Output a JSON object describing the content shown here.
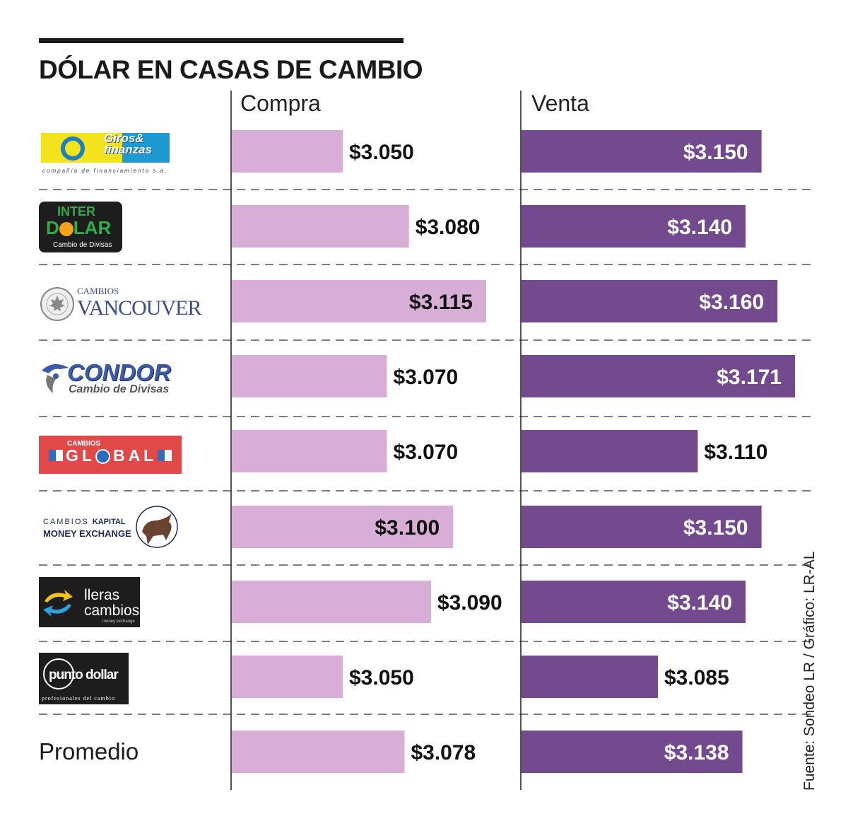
{
  "chart_data": {
    "type": "bar",
    "title": "DÓLAR EN CASAS DE CAMBIO",
    "series": [
      {
        "name": "Compra",
        "color": "#d8aed6",
        "values": [
          3050,
          3080,
          3115,
          3070,
          3070,
          3100,
          3090,
          3050,
          3078
        ],
        "labels": [
          "$3.050",
          "$3.080",
          "$3.115",
          "$3.070",
          "$3.070",
          "$3.100",
          "$3.090",
          "$3.050",
          "$3.078"
        ]
      },
      {
        "name": "Venta",
        "color": "#744a8f",
        "values": [
          3150,
          3140,
          3160,
          3171,
          3110,
          3150,
          3140,
          3085,
          3138
        ],
        "labels": [
          "$3.150",
          "$3.140",
          "$3.160",
          "$3.171",
          "$3.110",
          "$3.150",
          "$3.140",
          "$3.085",
          "$3.138"
        ]
      }
    ],
    "categories": [
      "Giros & Finanzas",
      "Inter Dolar",
      "Cambios Vancouver",
      "Condor",
      "Cambios Global",
      "Cambios Kapital",
      "Lleras Cambios",
      "Punto Dollar",
      "Promedio"
    ],
    "average_label": "Promedio",
    "source": "Fuente: Sondeo LR / Gráfico: LR-AL"
  },
  "logos": {
    "giros": {
      "name": "Giros&",
      "name2": "finanzas",
      "tagline": "compañía de financiamiento s.a."
    },
    "inter": {
      "line1": "INTER",
      "line2a": "D",
      "line2b": "LAR",
      "tagline": "Cambio de Divisas"
    },
    "vancouver": {
      "line1": "CAMBIOS",
      "line2": "VANCOUVER"
    },
    "condor": {
      "line1": "CONDOR",
      "line2": "Cambio de Divisas"
    },
    "global": {
      "line1": "CAMBIOS",
      "line2a": "GL",
      "line2b": "BAL"
    },
    "kapital": {
      "line1a": "CAMBIOS",
      "line1b": "KAPITAL",
      "line2": "MONEY EXCHANGE"
    },
    "lleras": {
      "line1": "lleras",
      "line2": "cambios",
      "tagline": "money exchange"
    },
    "punto": {
      "line1a": "punto",
      "line1b": "dollar",
      "tagline": "profesionales del cambio"
    }
  }
}
